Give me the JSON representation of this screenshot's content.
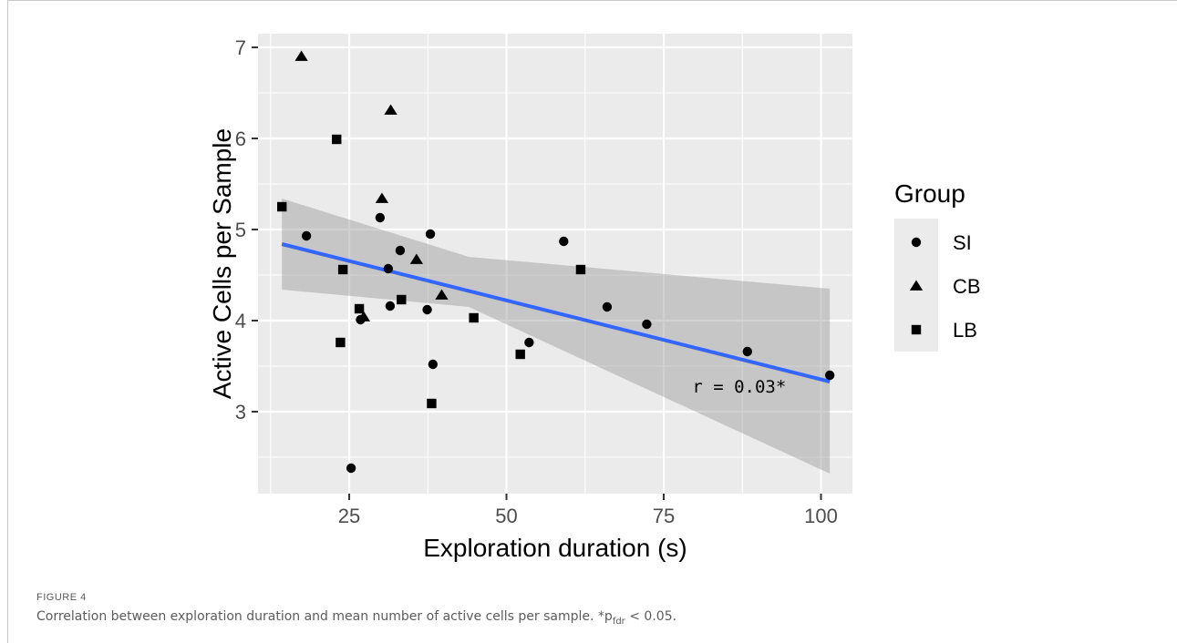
{
  "figure": {
    "label": "FIGURE 4",
    "caption_main": "Correlation between exploration duration and mean number of active cells per sample. *p",
    "caption_sub": "fdr",
    "caption_tail": " < 0.05."
  },
  "colors": {
    "panel": "#ebebeb",
    "grid": "#ffffff",
    "points": "#000000",
    "fit_line": "#3366ff",
    "ribbon": "#999999"
  },
  "chart_data": {
    "type": "scatter",
    "xlabel": "Exploration duration (s)",
    "ylabel": "Active Cells per Sample",
    "xlim": [
      10.5,
      105
    ],
    "ylim": [
      2.1,
      7.15
    ],
    "x_ticks": [
      25,
      50,
      75,
      100
    ],
    "y_ticks": [
      3,
      4,
      5,
      6,
      7
    ],
    "grid": true,
    "legend_title": "Group",
    "legend_position": "right",
    "series": [
      {
        "name": "SI",
        "shape": "circle",
        "points": [
          [
            18.2,
            4.93
          ],
          [
            25.3,
            2.38
          ],
          [
            26.8,
            4.01
          ],
          [
            29.9,
            5.13
          ],
          [
            31.2,
            4.57
          ],
          [
            31.5,
            4.16
          ],
          [
            33.1,
            4.77
          ],
          [
            37.4,
            4.12
          ],
          [
            37.9,
            4.95
          ],
          [
            38.3,
            3.52
          ],
          [
            53.6,
            3.76
          ],
          [
            59.1,
            4.87
          ],
          [
            66.0,
            4.15
          ],
          [
            72.3,
            3.96
          ],
          [
            88.3,
            3.66
          ],
          [
            101.4,
            3.4
          ]
        ]
      },
      {
        "name": "CB",
        "shape": "triangle",
        "points": [
          [
            17.4,
            6.9
          ],
          [
            27.3,
            4.04
          ],
          [
            30.2,
            5.34
          ],
          [
            31.6,
            6.31
          ],
          [
            35.7,
            4.67
          ],
          [
            39.7,
            4.28
          ]
        ]
      },
      {
        "name": "LB",
        "shape": "square",
        "points": [
          [
            14.3,
            5.25
          ],
          [
            23.0,
            5.99
          ],
          [
            23.6,
            3.76
          ],
          [
            24.0,
            4.56
          ],
          [
            26.6,
            4.13
          ],
          [
            33.3,
            4.23
          ],
          [
            38.1,
            3.09
          ],
          [
            44.8,
            4.03
          ],
          [
            52.2,
            3.63
          ],
          [
            61.8,
            4.56
          ]
        ]
      }
    ],
    "fit": {
      "x": [
        14.3,
        101.4
      ],
      "y": [
        4.84,
        3.33
      ],
      "ribbon": [
        [
          14.3,
          4.34,
          5.34
        ],
        [
          44.0,
          4.15,
          4.7
        ],
        [
          101.4,
          2.32,
          4.35
        ]
      ]
    },
    "annotation": {
      "text": "r = 0.03*",
      "x": 87,
      "y": 3.28
    }
  }
}
